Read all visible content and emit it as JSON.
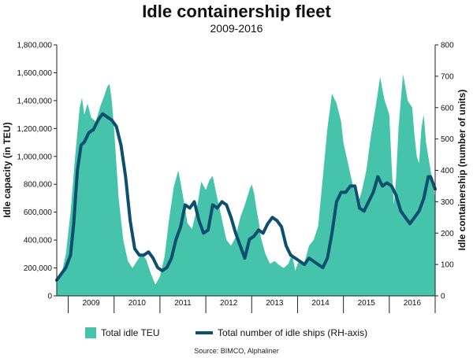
{
  "title": "Idle containership fleet",
  "subtitle": "2009-2016",
  "source": "Source: BIMCO, Alphaliner",
  "colors": {
    "area": "#45c4ab",
    "line": "#0d4f6e"
  },
  "chart_data": {
    "type": "area+line",
    "title": "Idle containership fleet",
    "subtitle": "2009-2016",
    "ylabel": "Idle capacity (in TEU)",
    "y2label": "Idle containership (number of units)",
    "ylim": [
      0,
      1800000
    ],
    "y2lim": [
      0,
      800
    ],
    "yticks": [
      "0",
      "200,000",
      "400,000",
      "600,000",
      "800,000",
      "1,000,000",
      "1,200,000",
      "1,400,000",
      "1,600,000",
      "1,800,000"
    ],
    "y2ticks": [
      "0",
      "100",
      "200",
      "300",
      "400",
      "500",
      "600",
      "700",
      "800"
    ],
    "xticks": [
      "2009",
      "2010",
      "2011",
      "2012",
      "2013",
      "2014",
      "2015",
      "2016"
    ],
    "xlim": [
      2008.75,
      2017.0
    ],
    "series": [
      {
        "name": "Total idle TEU",
        "axis": "left",
        "type": "area",
        "x": [
          2008.75,
          2008.85,
          2008.95,
          2009.05,
          2009.15,
          2009.25,
          2009.3,
          2009.35,
          2009.42,
          2009.5,
          2009.6,
          2009.7,
          2009.78,
          2009.85,
          2009.9,
          2009.95,
          2010.0,
          2010.05,
          2010.1,
          2010.2,
          2010.3,
          2010.4,
          2010.5,
          2010.6,
          2010.7,
          2010.8,
          2010.9,
          2011.0,
          2011.1,
          2011.2,
          2011.3,
          2011.4,
          2011.5,
          2011.6,
          2011.7,
          2011.8,
          2011.9,
          2012.0,
          2012.08,
          2012.15,
          2012.25,
          2012.35,
          2012.45,
          2012.55,
          2012.65,
          2012.75,
          2012.85,
          2012.95,
          2013.0,
          2013.05,
          2013.1,
          2013.15,
          2013.2,
          2013.3,
          2013.4,
          2013.5,
          2013.6,
          2013.7,
          2013.8,
          2013.88,
          2013.95,
          2014.0,
          2014.05,
          2014.15,
          2014.25,
          2014.35,
          2014.45,
          2014.55,
          2014.65,
          2014.75,
          2014.85,
          2014.95,
          2015.0,
          2015.1,
          2015.2,
          2015.3,
          2015.4,
          2015.5,
          2015.6,
          2015.7,
          2015.8,
          2015.85,
          2015.9,
          2016.0,
          2016.05,
          2016.1,
          2016.15,
          2016.2,
          2016.25,
          2016.3,
          2016.35,
          2016.4,
          2016.5,
          2016.55,
          2016.6,
          2016.65,
          2016.7,
          2016.75,
          2016.8,
          2016.85,
          2016.9,
          2016.95,
          2017.0
        ],
        "values": [
          90000,
          150000,
          300000,
          600000,
          1000000,
          1350000,
          1420000,
          1300000,
          1380000,
          1280000,
          1250000,
          1360000,
          1430000,
          1500000,
          1520000,
          1400000,
          1200000,
          950000,
          700000,
          400000,
          250000,
          200000,
          250000,
          300000,
          260000,
          160000,
          80000,
          140000,
          280000,
          550000,
          780000,
          900000,
          720000,
          520000,
          480000,
          620000,
          820000,
          760000,
          830000,
          860000,
          700000,
          550000,
          400000,
          360000,
          420000,
          560000,
          650000,
          760000,
          800000,
          740000,
          630000,
          540000,
          420000,
          300000,
          230000,
          250000,
          220000,
          200000,
          230000,
          300000,
          180000,
          230000,
          260000,
          240000,
          360000,
          400000,
          500000,
          850000,
          1200000,
          1450000,
          1380000,
          1250000,
          1100000,
          950000,
          800000,
          650000,
          750000,
          900000,
          1150000,
          1350000,
          1570000,
          1480000,
          1400000,
          1300000,
          950000,
          650000,
          850000,
          1200000,
          1400000,
          1590000,
          1500000,
          1400000,
          1350000,
          1150000,
          1000000,
          950000,
          1200000,
          1300000,
          1100000,
          1000000,
          900000,
          800000,
          700000
        ]
      },
      {
        "name": "Total number of idle ships (RH-axis)",
        "axis": "right",
        "type": "line",
        "x": [
          2008.75,
          2008.85,
          2008.95,
          2009.05,
          2009.12,
          2009.2,
          2009.28,
          2009.35,
          2009.45,
          2009.55,
          2009.65,
          2009.75,
          2009.85,
          2009.95,
          2010.05,
          2010.15,
          2010.25,
          2010.35,
          2010.45,
          2010.55,
          2010.65,
          2010.75,
          2010.85,
          2010.95,
          2011.05,
          2011.15,
          2011.25,
          2011.35,
          2011.45,
          2011.55,
          2011.65,
          2011.75,
          2011.85,
          2011.95,
          2012.05,
          2012.15,
          2012.25,
          2012.35,
          2012.45,
          2012.55,
          2012.65,
          2012.75,
          2012.85,
          2012.95,
          2013.05,
          2013.15,
          2013.25,
          2013.35,
          2013.45,
          2013.55,
          2013.65,
          2013.75,
          2013.85,
          2013.95,
          2014.05,
          2014.15,
          2014.25,
          2014.35,
          2014.45,
          2014.55,
          2014.65,
          2014.75,
          2014.85,
          2014.95,
          2015.05,
          2015.15,
          2015.25,
          2015.35,
          2015.45,
          2015.55,
          2015.65,
          2015.75,
          2015.85,
          2015.95,
          2016.05,
          2016.15,
          2016.25,
          2016.35,
          2016.45,
          2016.55,
          2016.65,
          2016.75,
          2016.85,
          2016.9,
          2017.0
        ],
        "values": [
          50,
          70,
          90,
          130,
          230,
          400,
          480,
          490,
          520,
          530,
          560,
          580,
          570,
          560,
          540,
          480,
          380,
          240,
          150,
          130,
          130,
          140,
          120,
          90,
          80,
          90,
          120,
          180,
          220,
          290,
          280,
          300,
          240,
          200,
          210,
          290,
          280,
          300,
          290,
          250,
          200,
          160,
          120,
          180,
          190,
          210,
          200,
          230,
          250,
          240,
          220,
          160,
          130,
          120,
          110,
          100,
          120,
          110,
          100,
          90,
          120,
          200,
          300,
          330,
          330,
          350,
          350,
          280,
          270,
          300,
          330,
          380,
          350,
          360,
          350,
          320,
          270,
          250,
          230,
          250,
          270,
          310,
          380,
          380,
          340
        ]
      }
    ]
  },
  "legend": {
    "area_label": "Total idle TEU",
    "line_label": "Total number of idle ships (RH-axis)"
  }
}
